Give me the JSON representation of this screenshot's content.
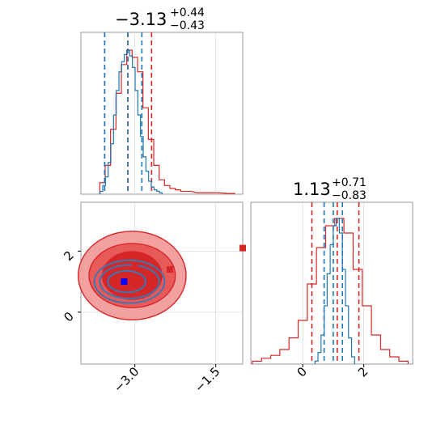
{
  "chart_data": {
    "type": "corner",
    "titles": {
      "param1": {
        "median": "−3.13",
        "plus": "+0.44",
        "minus": "−0.43"
      },
      "param2": {
        "median": "1.13",
        "plus": "+0.71",
        "minus": "−0.83"
      }
    },
    "axes": {
      "param1_range": [
        -4.0,
        -1.0
      ],
      "param2_range": [
        -1.7,
        3.6
      ],
      "param1_ticks": [
        {
          "value": -3.0,
          "label": "−3.0"
        },
        {
          "value": -1.5,
          "label": "−1.5"
        }
      ],
      "param2_ticks": [
        {
          "value": 0,
          "label": "0"
        },
        {
          "value": 2,
          "label": "2"
        }
      ],
      "grid": true
    },
    "colors": {
      "blue": "#1f77b4",
      "red": "#d62728",
      "red_mid": "#e85a5a",
      "red_light": "#f2a0a0",
      "contour_blue": "#3a76b0"
    },
    "series": [
      {
        "color": "blue",
        "hist1_centers": [
          -3.62,
          -3.57,
          -3.52,
          -3.47,
          -3.42,
          -3.37,
          -3.32,
          -3.27,
          -3.22,
          -3.17,
          -3.12,
          -3.07,
          -3.02,
          -2.97,
          -2.92,
          -2.87,
          -2.82,
          -2.77,
          -2.72,
          -2.67,
          -2.62,
          -2.57,
          -2.52
        ],
        "hist1_values": [
          0.02,
          0.06,
          0.12,
          0.22,
          0.35,
          0.55,
          0.72,
          0.85,
          0.92,
          0.97,
          1.0,
          0.96,
          0.88,
          0.72,
          0.55,
          0.4,
          0.26,
          0.16,
          0.09,
          0.05,
          0.03,
          0.02,
          0.01
        ],
        "hist1_quantiles": [
          -3.56,
          -3.13,
          -2.87
        ],
        "hist2_centers": [
          0.45,
          0.55,
          0.65,
          0.75,
          0.85,
          0.95,
          1.05,
          1.15,
          1.25,
          1.35,
          1.45,
          1.55,
          1.65
        ],
        "hist2_values": [
          0.02,
          0.08,
          0.2,
          0.4,
          0.62,
          0.82,
          0.95,
          1.0,
          0.9,
          0.65,
          0.4,
          0.18,
          0.05
        ],
        "hist2_quantiles": [
          0.7,
          1.0,
          1.3
        ],
        "contours": [
          {
            "cx": -3.1,
            "cy": 1.0,
            "rx": 0.65,
            "ry": 0.7
          },
          {
            "cx": -3.1,
            "cy": 1.0,
            "rx": 0.55,
            "ry": 0.55
          },
          {
            "cx": -3.15,
            "cy": 1.0,
            "rx": 0.35,
            "ry": 0.35
          }
        ],
        "best_fit": {
          "x": -3.2,
          "y": 1.0
        }
      },
      {
        "color": "red",
        "hist1_centers": [
          -3.6,
          -3.5,
          -3.4,
          -3.3,
          -3.2,
          -3.1,
          -3.0,
          -2.9,
          -2.8,
          -2.7,
          -2.6,
          -2.5,
          -2.4,
          -2.3,
          -2.2,
          -2.1,
          -2.0,
          -1.8,
          -1.5,
          -1.2
        ],
        "hist1_values": [
          0.08,
          0.2,
          0.45,
          0.7,
          0.9,
          1.0,
          0.95,
          0.85,
          0.6,
          0.38,
          0.2,
          0.1,
          0.06,
          0.04,
          0.03,
          0.02,
          0.02,
          0.01,
          0.01,
          0.005
        ],
        "hist1_quantiles": [
          -3.56,
          -3.13,
          -2.69
        ],
        "hist2_centers": [
          -1.5,
          -1.2,
          -0.9,
          -0.6,
          -0.3,
          0.0,
          0.3,
          0.6,
          0.9,
          1.2,
          1.5,
          1.8,
          2.1,
          2.4,
          2.7,
          3.0,
          3.3
        ],
        "hist2_values": [
          0.02,
          0.04,
          0.06,
          0.1,
          0.18,
          0.3,
          0.55,
          0.8,
          0.95,
          1.0,
          0.9,
          0.65,
          0.4,
          0.2,
          0.1,
          0.05,
          0.02
        ],
        "hist2_quantiles": [
          0.3,
          1.13,
          1.84
        ],
        "contours": [
          {
            "cx": -3.05,
            "cy": 1.2,
            "rx": 1.0,
            "ry": 1.45,
            "fill": "red_light"
          },
          {
            "cx": -3.05,
            "cy": 1.2,
            "rx": 0.8,
            "ry": 1.05,
            "fill": "red_mid"
          },
          {
            "cx": -3.05,
            "cy": 1.2,
            "rx": 0.55,
            "ry": 0.78,
            "fill": "red"
          }
        ],
        "best_fit": {
          "x": -3.0,
          "y": 1.5
        },
        "extra_markers": [
          {
            "x": -2.35,
            "y": 1.4
          },
          {
            "x": -1.0,
            "y": 2.1
          }
        ]
      }
    ]
  }
}
